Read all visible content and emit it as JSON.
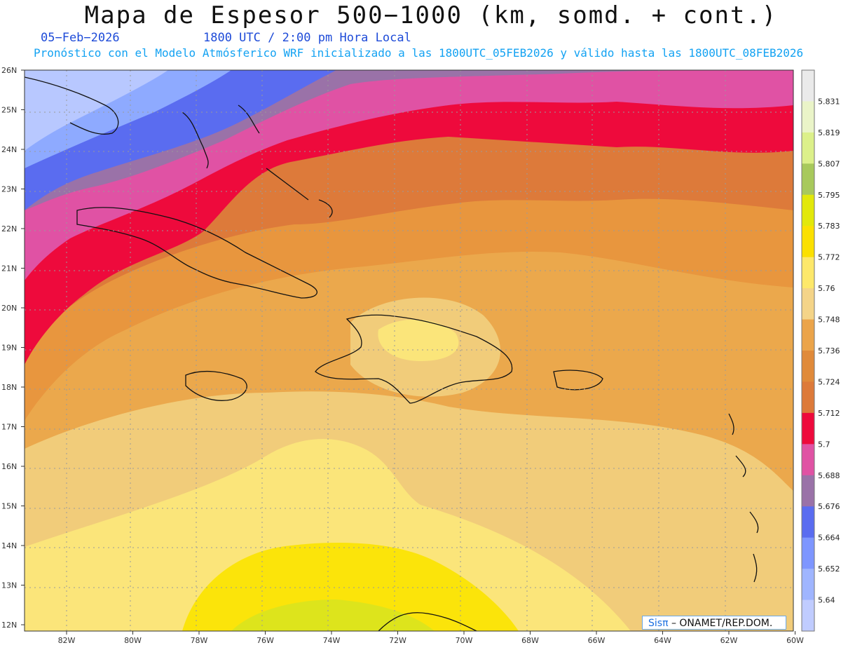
{
  "header": {
    "title": "Mapa de Espesor 500−1000 (km, somd. + cont.)",
    "date": "05−Feb−2026",
    "time": "1800 UTC / 2:00 pm Hora Local",
    "description": "Pronóstico con el Modelo Atmósferico WRF inicializado a las 1800UTC_05FEB2026 y válido hasta las  1800UTC_08FEB2026"
  },
  "map": {
    "lat_labels": [
      "26N",
      "25N",
      "24N",
      "23N",
      "22N",
      "21N",
      "20N",
      "19N",
      "18N",
      "17N",
      "16N",
      "15N",
      "14N",
      "13N",
      "12N"
    ],
    "lon_labels": [
      "82W",
      "80W",
      "78W",
      "76W",
      "74W",
      "72W",
      "70W",
      "68W",
      "66W",
      "64W",
      "62W",
      "60W"
    ],
    "colors": {
      "ocean_low": "#b8c8ff",
      "blue_light": "#8eaaff",
      "blue": "#5a6cf0",
      "purple": "#9a72a8",
      "pink": "#e052a4",
      "red": "#ee0a3c",
      "orange_dark": "#dd7a3a",
      "orange": "#e8963e",
      "orange_light": "#eba84c",
      "tan": "#f1cc7a",
      "yellow_light": "#fbe57a",
      "yellow": "#fbe40a",
      "yellow_green": "#dde41c"
    }
  },
  "colorbar": {
    "labels": [
      "5.831",
      "5.819",
      "5.807",
      "5.795",
      "5.783",
      "5.772",
      "5.76",
      "5.748",
      "5.736",
      "5.724",
      "5.712",
      "5.7",
      "5.688",
      "5.676",
      "5.664",
      "5.652",
      "5.64"
    ],
    "colors": [
      "#eaeaea",
      "#eaf4c8",
      "#dcf08a",
      "#a8c95c",
      "#e2e80a",
      "#fbe000",
      "#fde86a",
      "#f4d488",
      "#eba44a",
      "#e08a3a",
      "#dd7a3a",
      "#ee0a3c",
      "#e052a4",
      "#9a72a8",
      "#5a6cf0",
      "#7e96ff",
      "#9fb5ff",
      "#c0ccff"
    ]
  },
  "credit": {
    "logo": "Sisπ",
    "text": " – ONAMET/REP.DOM."
  }
}
